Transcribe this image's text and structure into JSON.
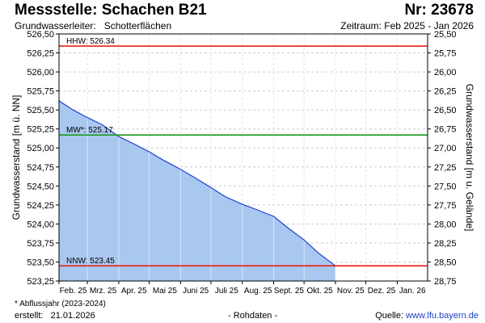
{
  "header": {
    "title": "Messstelle: Schachen B21",
    "number": "Nr: 23678",
    "aquifer_label": "Grundwasserleiter:",
    "aquifer_value": "Schotterflächen",
    "period": "Zeitraum: Feb 2025 - Jan 2026"
  },
  "footer": {
    "footnote": "* Abflussjahr (2023-2024)",
    "created_label": "erstellt:",
    "created_value": "21.01.2026",
    "raw_data": "- Rohdaten -",
    "source_label": "Quelle:",
    "source_value": "www.lfu.bayern.de"
  },
  "colors": {
    "hhw": "#e8201a",
    "mw": "#1e9a1e",
    "nnw": "#e8201a",
    "series_line": "#1f3fd0",
    "series_fill": "#a9c8f0"
  },
  "chart_data": {
    "type": "area",
    "title": "",
    "ylabel": "Grundwasserstand [m ü. NN]",
    "y2label": "Grundwasserstand [m u. Gelände]",
    "ylim": [
      523.25,
      526.5
    ],
    "yticks": [
      "523,25",
      "523,50",
      "523,75",
      "524,00",
      "524,25",
      "524,50",
      "524,75",
      "525,00",
      "525,25",
      "525,50",
      "525,75",
      "526,00",
      "526,25",
      "526,50"
    ],
    "y2lim": [
      28.75,
      25.5
    ],
    "y2ticks": [
      "28,75",
      "28,50",
      "28,25",
      "28,00",
      "27,75",
      "27,50",
      "27,25",
      "27,00",
      "26,75",
      "26,50",
      "26,25",
      "26,00",
      "25,75",
      "25,50"
    ],
    "xlim": [
      "2025-02-01",
      "2026-01-31"
    ],
    "xticks": [
      {
        "date": "2025-02-01",
        "label": "Feb. 25"
      },
      {
        "date": "2025-03-01",
        "label": "Mrz. 25"
      },
      {
        "date": "2025-04-01",
        "label": "Apr. 25"
      },
      {
        "date": "2025-05-01",
        "label": "Mai 25"
      },
      {
        "date": "2025-06-01",
        "label": "Juni 25"
      },
      {
        "date": "2025-07-01",
        "label": "Juli 25"
      },
      {
        "date": "2025-08-01",
        "label": "Aug. 25"
      },
      {
        "date": "2025-09-01",
        "label": "Sept. 25"
      },
      {
        "date": "2025-10-01",
        "label": "Okt. 25"
      },
      {
        "date": "2025-11-01",
        "label": "Nov. 25"
      },
      {
        "date": "2025-12-01",
        "label": "Dez. 25"
      },
      {
        "date": "2026-01-01",
        "label": "Jan. 26"
      }
    ],
    "grid": true,
    "reference_lines": [
      {
        "label": "HHW: 526.34",
        "value": 526.34
      },
      {
        "label": "MW*: 525.17",
        "value": 525.17
      },
      {
        "label": "NNW: 523.45",
        "value": 523.45
      }
    ],
    "series": [
      {
        "x": [
          "2025-02-01",
          "2025-02-15",
          "2025-03-01",
          "2025-03-15",
          "2025-04-01",
          "2025-04-15",
          "2025-05-01",
          "2025-05-15",
          "2025-06-01",
          "2025-06-15",
          "2025-07-01",
          "2025-07-15",
          "2025-08-01",
          "2025-08-15",
          "2025-09-01",
          "2025-09-15",
          "2025-10-01",
          "2025-10-15",
          "2025-11-01"
        ],
        "y": [
          525.62,
          525.5,
          525.4,
          525.31,
          525.15,
          525.06,
          524.95,
          524.84,
          524.72,
          524.61,
          524.48,
          524.36,
          524.26,
          524.19,
          524.1,
          523.95,
          523.79,
          523.62,
          523.45
        ]
      }
    ]
  }
}
